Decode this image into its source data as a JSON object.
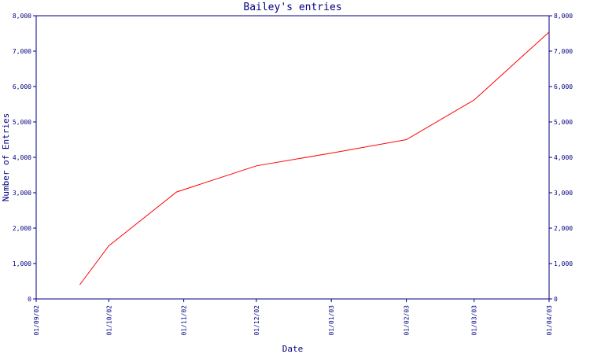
{
  "chart_data": {
    "type": "line",
    "title": "Bailey's entries",
    "xlabel": "Date",
    "ylabel": "Number of Entries",
    "x_ticks": [
      "01/09/02",
      "01/10/02",
      "01/11/02",
      "01/12/02",
      "01/01/03",
      "01/02/03",
      "01/03/03",
      "01/04/03"
    ],
    "y_ticks": [
      "0",
      "1,000",
      "2,000",
      "3,000",
      "4,000",
      "5,000",
      "6,000",
      "7,000",
      "8,000"
    ],
    "ylim": [
      0,
      8000
    ],
    "xlim": [
      "2002-09-01",
      "2003-04-01"
    ],
    "grid": false,
    "y_axis_both_sides": true,
    "line_color": "#ff0000",
    "axis_color": "#000080",
    "series": [
      {
        "x": [
          "2002-09-19",
          "2002-10-01",
          "2002-10-29",
          "2002-12-01",
          "2003-01-01",
          "2003-02-01",
          "2003-03-01",
          "2003-04-01"
        ],
        "y": [
          400,
          1500,
          3020,
          3760,
          4120,
          4500,
          5620,
          7540
        ]
      }
    ]
  }
}
